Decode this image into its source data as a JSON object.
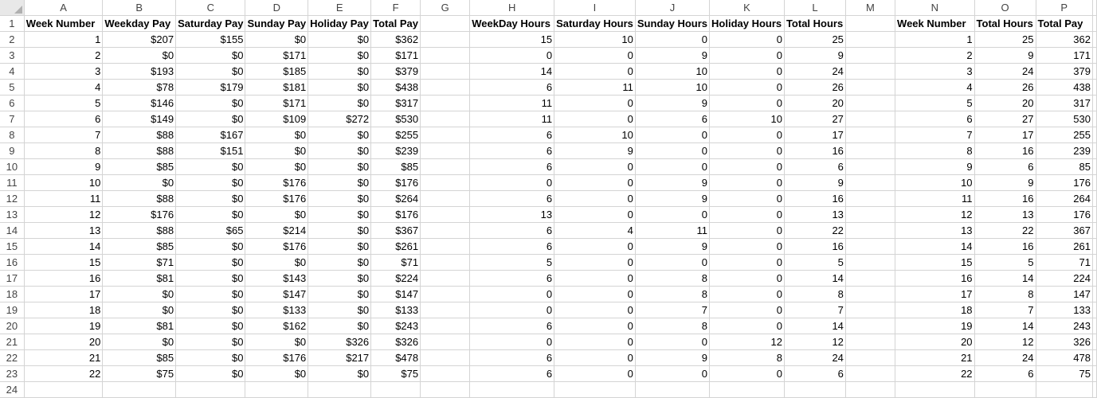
{
  "columns": [
    "A",
    "B",
    "C",
    "D",
    "E",
    "F",
    "G",
    "H",
    "I",
    "J",
    "K",
    "L",
    "M",
    "N",
    "O",
    "P"
  ],
  "headers": [
    "Week Number",
    "Weekday Pay",
    "Saturday Pay",
    "Sunday Pay",
    "Holiday Pay",
    "Total Pay",
    "",
    "WeekDay Hours",
    "Saturday Hours",
    "Sunday Hours",
    "Holiday Hours",
    "Total Hours",
    "",
    "Week Number",
    "Total Hours",
    "Total Pay"
  ],
  "rows": [
    [
      "1",
      "$207",
      "$155",
      "$0",
      "$0",
      "$362",
      "",
      "15",
      "10",
      "0",
      "0",
      "25",
      "",
      "1",
      "25",
      "362"
    ],
    [
      "2",
      "$0",
      "$0",
      "$171",
      "$0",
      "$171",
      "",
      "0",
      "0",
      "9",
      "0",
      "9",
      "",
      "2",
      "9",
      "171"
    ],
    [
      "3",
      "$193",
      "$0",
      "$185",
      "$0",
      "$379",
      "",
      "14",
      "0",
      "10",
      "0",
      "24",
      "",
      "3",
      "24",
      "379"
    ],
    [
      "4",
      "$78",
      "$179",
      "$181",
      "$0",
      "$438",
      "",
      "6",
      "11",
      "10",
      "0",
      "26",
      "",
      "4",
      "26",
      "438"
    ],
    [
      "5",
      "$146",
      "$0",
      "$171",
      "$0",
      "$317",
      "",
      "11",
      "0",
      "9",
      "0",
      "20",
      "",
      "5",
      "20",
      "317"
    ],
    [
      "6",
      "$149",
      "$0",
      "$109",
      "$272",
      "$530",
      "",
      "11",
      "0",
      "6",
      "10",
      "27",
      "",
      "6",
      "27",
      "530"
    ],
    [
      "7",
      "$88",
      "$167",
      "$0",
      "$0",
      "$255",
      "",
      "6",
      "10",
      "0",
      "0",
      "17",
      "",
      "7",
      "17",
      "255"
    ],
    [
      "8",
      "$88",
      "$151",
      "$0",
      "$0",
      "$239",
      "",
      "6",
      "9",
      "0",
      "0",
      "16",
      "",
      "8",
      "16",
      "239"
    ],
    [
      "9",
      "$85",
      "$0",
      "$0",
      "$0",
      "$85",
      "",
      "6",
      "0",
      "0",
      "0",
      "6",
      "",
      "9",
      "6",
      "85"
    ],
    [
      "10",
      "$0",
      "$0",
      "$176",
      "$0",
      "$176",
      "",
      "0",
      "0",
      "9",
      "0",
      "9",
      "",
      "10",
      "9",
      "176"
    ],
    [
      "11",
      "$88",
      "$0",
      "$176",
      "$0",
      "$264",
      "",
      "6",
      "0",
      "9",
      "0",
      "16",
      "",
      "11",
      "16",
      "264"
    ],
    [
      "12",
      "$176",
      "$0",
      "$0",
      "$0",
      "$176",
      "",
      "13",
      "0",
      "0",
      "0",
      "13",
      "",
      "12",
      "13",
      "176"
    ],
    [
      "13",
      "$88",
      "$65",
      "$214",
      "$0",
      "$367",
      "",
      "6",
      "4",
      "11",
      "0",
      "22",
      "",
      "13",
      "22",
      "367"
    ],
    [
      "14",
      "$85",
      "$0",
      "$176",
      "$0",
      "$261",
      "",
      "6",
      "0",
      "9",
      "0",
      "16",
      "",
      "14",
      "16",
      "261"
    ],
    [
      "15",
      "$71",
      "$0",
      "$0",
      "$0",
      "$71",
      "",
      "5",
      "0",
      "0",
      "0",
      "5",
      "",
      "15",
      "5",
      "71"
    ],
    [
      "16",
      "$81",
      "$0",
      "$143",
      "$0",
      "$224",
      "",
      "6",
      "0",
      "8",
      "0",
      "14",
      "",
      "16",
      "14",
      "224"
    ],
    [
      "17",
      "$0",
      "$0",
      "$147",
      "$0",
      "$147",
      "",
      "0",
      "0",
      "8",
      "0",
      "8",
      "",
      "17",
      "8",
      "147"
    ],
    [
      "18",
      "$0",
      "$0",
      "$133",
      "$0",
      "$133",
      "",
      "0",
      "0",
      "7",
      "0",
      "7",
      "",
      "18",
      "7",
      "133"
    ],
    [
      "19",
      "$81",
      "$0",
      "$162",
      "$0",
      "$243",
      "",
      "6",
      "0",
      "8",
      "0",
      "14",
      "",
      "19",
      "14",
      "243"
    ],
    [
      "20",
      "$0",
      "$0",
      "$0",
      "$326",
      "$326",
      "",
      "0",
      "0",
      "0",
      "12",
      "12",
      "",
      "20",
      "12",
      "326"
    ],
    [
      "21",
      "$85",
      "$0",
      "$176",
      "$217",
      "$478",
      "",
      "6",
      "0",
      "9",
      "8",
      "24",
      "",
      "21",
      "24",
      "478"
    ],
    [
      "22",
      "$75",
      "$0",
      "$0",
      "$0",
      "$75",
      "",
      "6",
      "0",
      "0",
      "0",
      "6",
      "",
      "22",
      "6",
      "75"
    ]
  ],
  "row_numbers": [
    "1",
    "2",
    "3",
    "4",
    "5",
    "6",
    "7",
    "8",
    "9",
    "10",
    "11",
    "12",
    "13",
    "14",
    "15",
    "16",
    "17",
    "18",
    "19",
    "20",
    "21",
    "22",
    "23",
    "24"
  ]
}
